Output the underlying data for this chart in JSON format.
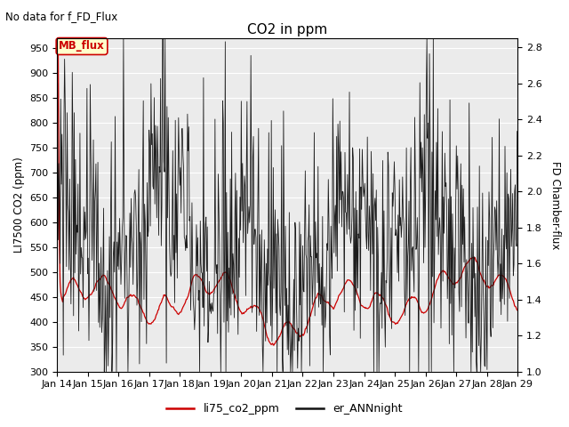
{
  "title": "CO2 in ppm",
  "subtitle": "No data for f_FD_Flux",
  "ylabel_left": "LI7500 CO2 (ppm)",
  "ylabel_right": "FD Chamber-flux",
  "ylim_left": [
    300,
    970
  ],
  "ylim_right": [
    1.0,
    2.85
  ],
  "yticks_left": [
    300,
    350,
    400,
    450,
    500,
    550,
    600,
    650,
    700,
    750,
    800,
    850,
    900,
    950
  ],
  "yticks_right": [
    1.0,
    1.2,
    1.4,
    1.6,
    1.8,
    2.0,
    2.2,
    2.4,
    2.6,
    2.8
  ],
  "legend_labels": [
    "li75_co2_ppm",
    "er_ANNnight"
  ],
  "legend_colors": [
    "#cc0000",
    "#111111"
  ],
  "annotation_text": "MB_flux",
  "annotation_color": "#cc0000",
  "annotation_bg": "#ffffcc",
  "annotation_border": "#cc0000",
  "line_color_red": "#cc0000",
  "line_color_black": "#111111",
  "background_color": "#ebebeb",
  "grid_color": "#ffffff"
}
